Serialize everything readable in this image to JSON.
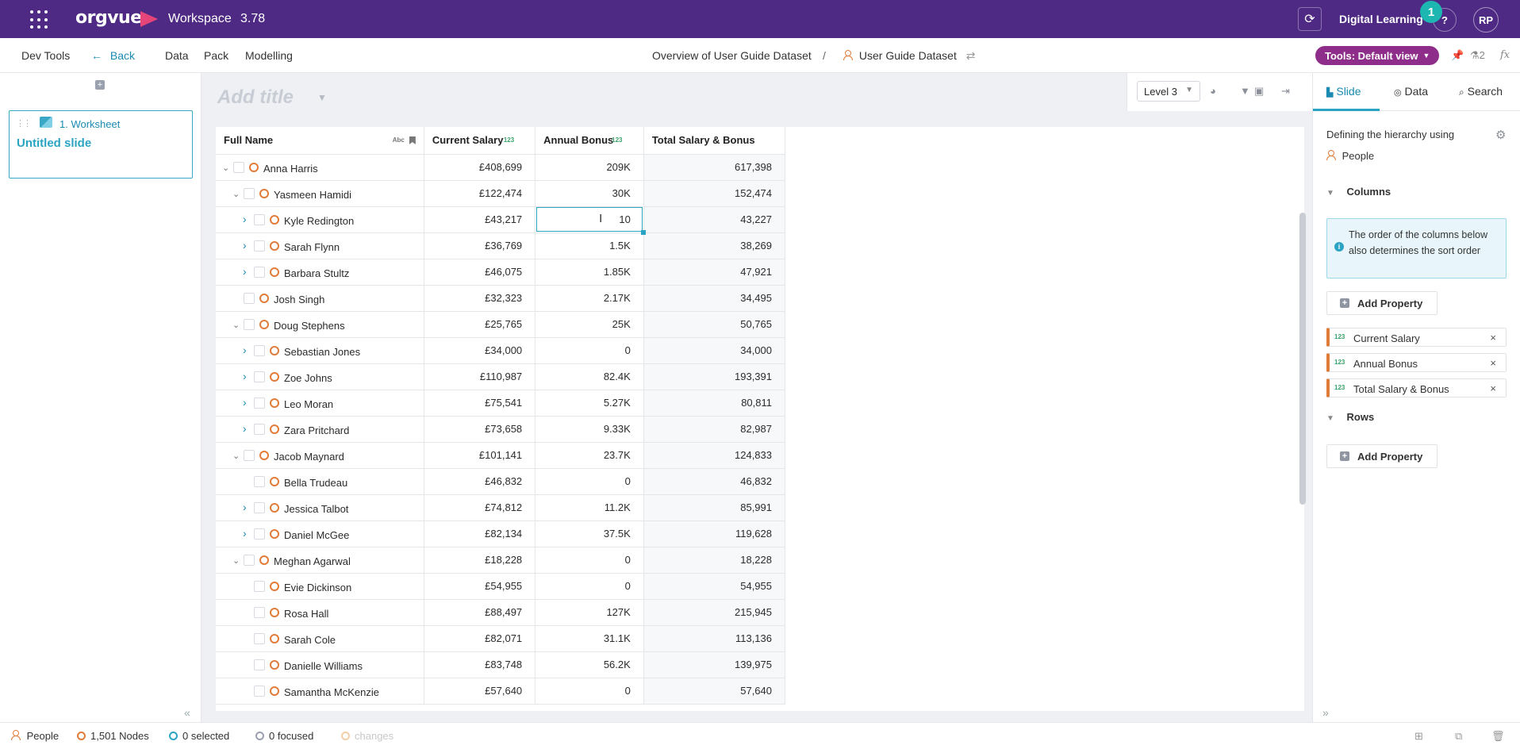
{
  "topbar": {
    "app_logo": "orgvue",
    "workspace_name": "Workspace",
    "workspace_version": "3.78",
    "org_name": "Digital Learning",
    "notification_count": "1",
    "help_label": "?",
    "user_initials": "RP",
    "brand_color": "#4e2a84"
  },
  "subbar": {
    "dev_tools": "Dev Tools",
    "back": "Back",
    "menu": [
      "Data",
      "Pack",
      "Modelling"
    ],
    "breadcrumb": {
      "overview": "Overview of User Guide Dataset",
      "separator": "/",
      "dataset": "User Guide Dataset"
    },
    "tools_view": "Tools: Default view",
    "user_count": "2",
    "fx": "fx"
  },
  "slides": {
    "worksheet_label": "1. Worksheet",
    "slide_title": "Untitled slide"
  },
  "canvas": {
    "add_title_placeholder": "Add title",
    "level": "Level 3",
    "columns": [
      {
        "label": "Full Name",
        "type": "Abc"
      },
      {
        "label": "Current Salary",
        "type": "123"
      },
      {
        "label": "Annual Bonus",
        "type": "123"
      },
      {
        "label": "Total Salary & Bonus",
        "type": ""
      }
    ],
    "rows": [
      {
        "name": "Anna Harris",
        "salary": "£408,699",
        "bonus": "209K",
        "total": "617,398"
      },
      {
        "name": "Yasmeen Hamidi",
        "salary": "£122,474",
        "bonus": "30K",
        "total": "152,474"
      },
      {
        "name": "Kyle Redington",
        "salary": "£43,217",
        "bonus": "10",
        "total": "43,227"
      },
      {
        "name": "Sarah Flynn",
        "salary": "£36,769",
        "bonus": "1.5K",
        "total": "38,269"
      },
      {
        "name": "Barbara Stultz",
        "salary": "£46,075",
        "bonus": "1.85K",
        "total": "47,921"
      },
      {
        "name": "Josh Singh",
        "salary": "£32,323",
        "bonus": "2.17K",
        "total": "34,495"
      },
      {
        "name": "Doug Stephens",
        "salary": "£25,765",
        "bonus": "25K",
        "total": "50,765"
      },
      {
        "name": "Sebastian Jones",
        "salary": "£34,000",
        "bonus": "0",
        "total": "34,000"
      },
      {
        "name": "Zoe Johns",
        "salary": "£110,987",
        "bonus": "82.4K",
        "total": "193,391"
      },
      {
        "name": "Leo Moran",
        "salary": "£75,541",
        "bonus": "5.27K",
        "total": "80,811"
      },
      {
        "name": "Zara Pritchard",
        "salary": "£73,658",
        "bonus": "9.33K",
        "total": "82,987"
      },
      {
        "name": "Jacob Maynard",
        "salary": "£101,141",
        "bonus": "23.7K",
        "total": "124,833"
      },
      {
        "name": "Bella Trudeau",
        "salary": "£46,832",
        "bonus": "0",
        "total": "46,832"
      },
      {
        "name": "Jessica Talbot",
        "salary": "£74,812",
        "bonus": "11.2K",
        "total": "85,991"
      },
      {
        "name": "Daniel McGee",
        "salary": "£82,134",
        "bonus": "37.5K",
        "total": "119,628"
      },
      {
        "name": "Meghan Agarwal",
        "salary": "£18,228",
        "bonus": "0",
        "total": "18,228"
      },
      {
        "name": "Evie Dickinson",
        "salary": "£54,955",
        "bonus": "0",
        "total": "54,955"
      },
      {
        "name": "Rosa Hall",
        "salary": "£88,497",
        "bonus": "127K",
        "total": "215,945"
      },
      {
        "name": "Sarah Cole",
        "salary": "£82,071",
        "bonus": "31.1K",
        "total": "113,136"
      },
      {
        "name": "Danielle Williams",
        "salary": "£83,748",
        "bonus": "56.2K",
        "total": "139,975"
      },
      {
        "name": "Samantha McKenzie",
        "salary": "£57,640",
        "bonus": "0",
        "total": "57,640"
      }
    ]
  },
  "rightpanel": {
    "tabs": [
      "Slide",
      "Data",
      "Search"
    ],
    "hierarchy_text": "Defining the hierarchy using",
    "hierarchy_dimension": "People",
    "columns_heading": "Columns",
    "info_text": "The order of the columns below also determines the sort order",
    "add_property": "Add Property",
    "properties": [
      {
        "type": "123",
        "name": "Current Salary"
      },
      {
        "type": "123",
        "name": "Annual Bonus"
      },
      {
        "type": "123",
        "name": "Total Salary & Bonus"
      }
    ],
    "rows_heading": "Rows"
  },
  "statusbar": {
    "dimension": "People",
    "nodes": "1,501 Nodes",
    "selected": "0 selected",
    "focused": "0 focused",
    "changes": "changes"
  }
}
